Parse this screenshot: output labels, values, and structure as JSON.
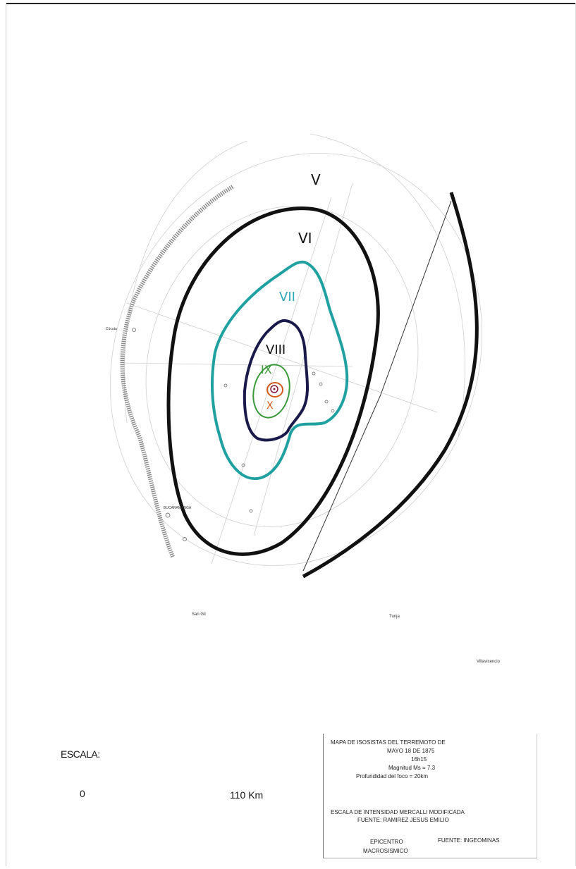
{
  "map": {
    "zones": [
      "V",
      "VI",
      "VII",
      "VIII",
      "IX",
      "X"
    ],
    "zone_colors": {
      "V": "#111111",
      "VI": "#111111",
      "VII": "#1f9b9b",
      "VIII": "#1a1a4a",
      "IX": "#3a9a3a",
      "X": "#d35a1a"
    },
    "places": {
      "cucuta": "Cúcuta",
      "bucaramanga": "BUCARAMANGA",
      "san_gil": "San Gil",
      "tunja": "Tunja",
      "villavicencio": "Villavicencio"
    }
  },
  "scale": {
    "title": "ESCALA:",
    "zero": "0",
    "max": "110 Km"
  },
  "legend": {
    "title_line1": "MAPA DE ISOSISTAS DEL TERREMOTO DE",
    "date": "MAYO 18 DE 1875",
    "time": "16h15",
    "magnitude": "Magnitud Ms = 7.3",
    "depth": "Profundidad del foco = 20km",
    "intensity_scale": "ESCALA DE INTENSIDAD MERCALLI MODIFICADA",
    "source1": "FUENTE: RAMIREZ JESUS EMILIO",
    "epicenter_line1": "EPICENTRO",
    "epicenter_line2": "MACROSISMICO",
    "source2": "FUENTE: INGEOMINAS"
  }
}
